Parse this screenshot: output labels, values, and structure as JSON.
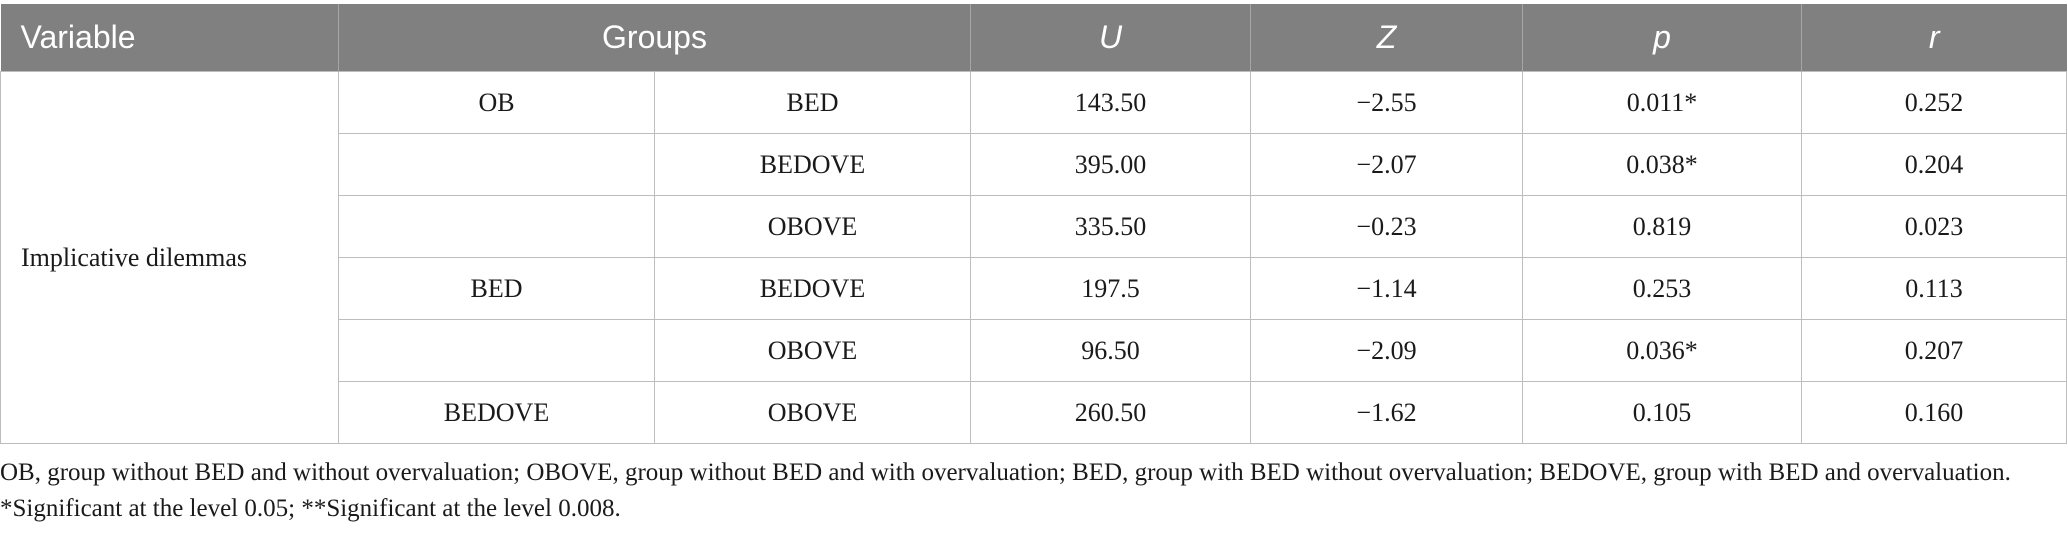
{
  "headers": {
    "variable": "Variable",
    "groups": "Groups",
    "u": "U",
    "z": "Z",
    "p": "p",
    "r": "r"
  },
  "variable_label": "Implicative dilemmas",
  "group_labels": [
    "OB",
    "BED",
    "BEDOVE"
  ],
  "rows": [
    {
      "comparison": "BED",
      "u": "143.50",
      "z": "−2.55",
      "p": "0.011*",
      "r": "0.252"
    },
    {
      "comparison": "BEDOVE",
      "u": "395.00",
      "z": "−2.07",
      "p": "0.038*",
      "r": "0.204"
    },
    {
      "comparison": "OBOVE",
      "u": "335.50",
      "z": "−0.23",
      "p": "0.819",
      "r": "0.023"
    },
    {
      "comparison": "BEDOVE",
      "u": "197.5",
      "z": "−1.14",
      "p": "0.253",
      "r": "0.113"
    },
    {
      "comparison": "OBOVE",
      "u": "96.50",
      "z": "−2.09",
      "p": "0.036*",
      "r": "0.207"
    },
    {
      "comparison": "OBOVE",
      "u": "260.50",
      "z": "−1.62",
      "p": "0.105",
      "r": "0.160"
    }
  ],
  "footnote": "OB, group without BED and without overvaluation; OBOVE, group without BED and with overvaluation; BED, group with BED without overvaluation; BEDOVE, group with BED and overvaluation. *Significant at the level 0.05; **Significant at the level 0.008."
}
